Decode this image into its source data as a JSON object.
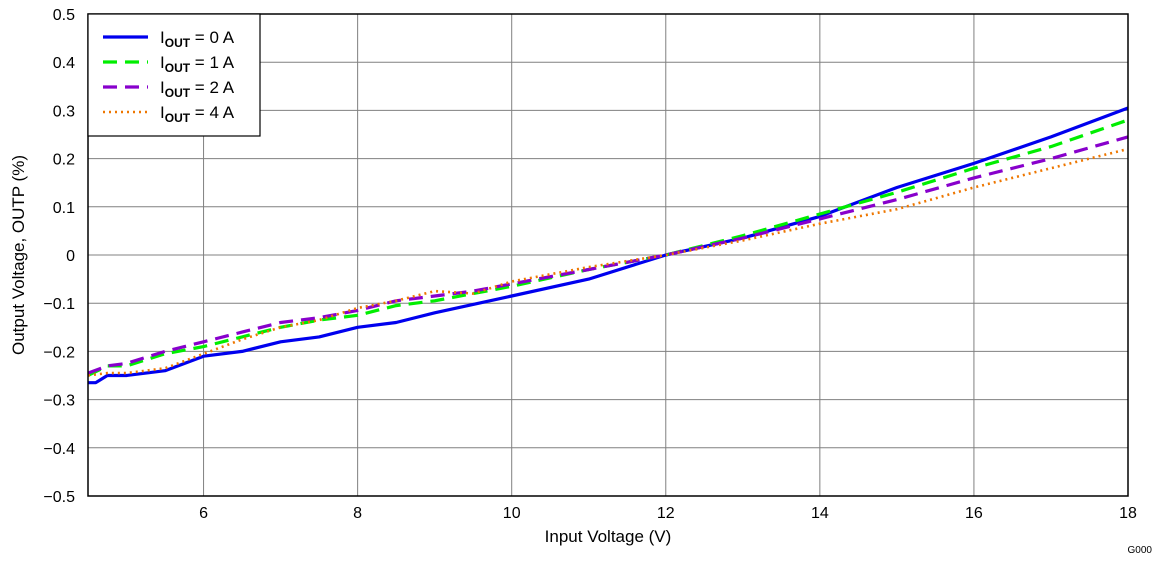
{
  "chart_data": {
    "type": "line",
    "title": "",
    "xlabel": "Input Voltage (V)",
    "ylabel": "Output Voltage, OUTP (%)",
    "xlim": [
      4.5,
      18
    ],
    "ylim": [
      -0.5,
      0.5
    ],
    "x_ticks": [
      6,
      8,
      10,
      12,
      14,
      16,
      18
    ],
    "x_tick_labels": [
      "6",
      "8",
      "10",
      "12",
      "14",
      "16",
      "18"
    ],
    "y_ticks": [
      -0.5,
      -0.4,
      -0.3,
      -0.2,
      -0.1,
      0,
      0.1,
      0.2,
      0.3,
      0.4,
      0.5
    ],
    "y_tick_labels": [
      "−0.5",
      "−0.4",
      "−0.3",
      "−0.2",
      "−0.1",
      "0",
      "0.1",
      "0.2",
      "0.3",
      "0.4",
      "0.5"
    ],
    "grid": true,
    "legend_position": "top-left",
    "corner_code": "G000",
    "series": [
      {
        "name": "IOUT = 0 A",
        "label_main": "I",
        "label_sub": "OUT",
        "label_rest": " = 0 A",
        "color": "#0000ee",
        "style": "solid",
        "x": [
          4.5,
          4.6,
          4.75,
          5.0,
          5.5,
          6.0,
          6.5,
          7.0,
          7.5,
          8.0,
          8.5,
          9.0,
          10.0,
          11.0,
          12.0,
          13.0,
          14.0,
          15.0,
          16.0,
          17.0,
          18.0
        ],
        "y": [
          -0.265,
          -0.265,
          -0.25,
          -0.25,
          -0.24,
          -0.21,
          -0.2,
          -0.18,
          -0.17,
          -0.15,
          -0.14,
          -0.12,
          -0.085,
          -0.05,
          0.0,
          0.035,
          0.08,
          0.14,
          0.19,
          0.245,
          0.305
        ]
      },
      {
        "name": "IOUT = 1 A",
        "label_main": "I",
        "label_sub": "OUT",
        "label_rest": " = 1 A",
        "color": "#00ee00",
        "style": "dash",
        "x": [
          4.5,
          4.75,
          5.0,
          5.5,
          6.0,
          6.5,
          7.0,
          7.5,
          8.0,
          8.5,
          9.0,
          10.0,
          11.0,
          12.0,
          13.0,
          14.0,
          15.0,
          16.0,
          17.0,
          18.0
        ],
        "y": [
          -0.25,
          -0.23,
          -0.23,
          -0.205,
          -0.19,
          -0.17,
          -0.15,
          -0.135,
          -0.125,
          -0.105,
          -0.095,
          -0.065,
          -0.03,
          0.0,
          0.04,
          0.085,
          0.13,
          0.18,
          0.225,
          0.28
        ]
      },
      {
        "name": "IOUT = 2 A",
        "label_main": "I",
        "label_sub": "OUT",
        "label_rest": " = 2 A",
        "color": "#8800cc",
        "style": "dash",
        "x": [
          4.5,
          4.75,
          5.0,
          5.5,
          6.0,
          6.5,
          7.0,
          7.5,
          8.0,
          8.5,
          9.0,
          9.5,
          10.0,
          11.0,
          12.0,
          13.0,
          14.0,
          15.0,
          16.0,
          17.0,
          18.0
        ],
        "y": [
          -0.245,
          -0.23,
          -0.225,
          -0.2,
          -0.18,
          -0.16,
          -0.14,
          -0.13,
          -0.115,
          -0.095,
          -0.085,
          -0.075,
          -0.06,
          -0.03,
          0.0,
          0.035,
          0.075,
          0.115,
          0.16,
          0.2,
          0.245
        ]
      },
      {
        "name": "IOUT = 4 A",
        "label_main": "I",
        "label_sub": "OUT",
        "label_rest": " = 4 A",
        "color": "#ee7700",
        "style": "dot",
        "x": [
          4.5,
          4.75,
          5.0,
          5.5,
          6.0,
          6.5,
          7.0,
          7.5,
          8.0,
          8.5,
          9.0,
          9.5,
          10.0,
          11.0,
          12.0,
          13.0,
          14.0,
          15.0,
          16.0,
          17.0,
          18.0
        ],
        "y": [
          -0.25,
          -0.245,
          -0.245,
          -0.235,
          -0.205,
          -0.175,
          -0.15,
          -0.135,
          -0.11,
          -0.095,
          -0.075,
          -0.08,
          -0.055,
          -0.025,
          0.0,
          0.03,
          0.065,
          0.095,
          0.14,
          0.18,
          0.22
        ]
      }
    ]
  }
}
